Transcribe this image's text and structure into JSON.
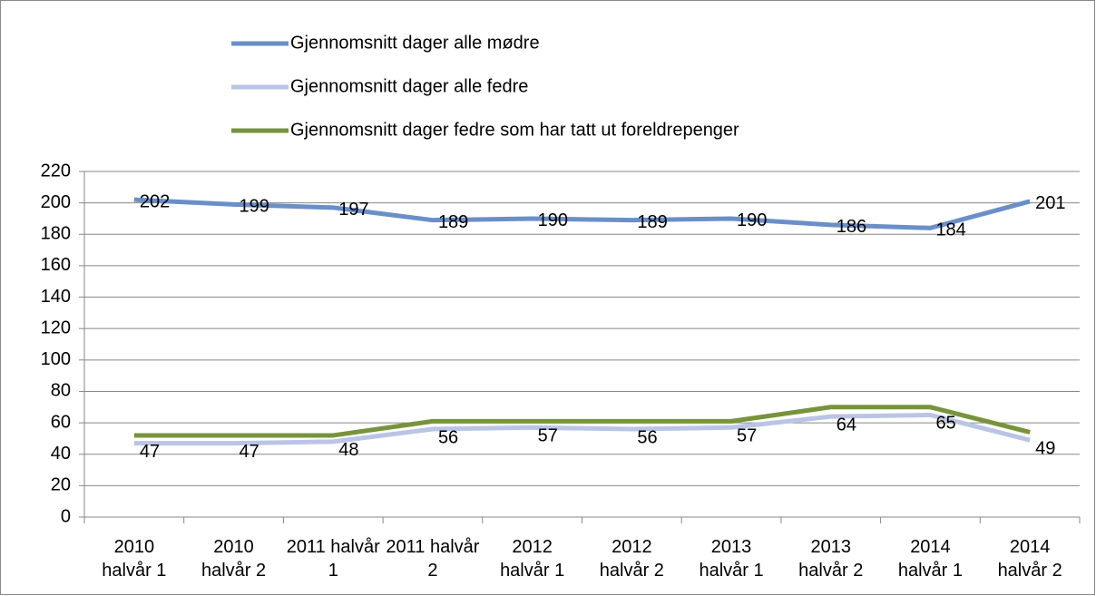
{
  "chart_data": {
    "type": "line",
    "categories": [
      "2010 halvår 1",
      "2010 halvår 2",
      "2011 halvår 1",
      "2011 halvår 2",
      "2012 halvår 1",
      "2012 halvår 2",
      "2013 halvår 1",
      "2013 halvår 2",
      "2014 halvår 1",
      "2014 halvår 2"
    ],
    "series": [
      {
        "name": "Gjennomsnitt dager alle mødre",
        "color": "#6a8fc8",
        "values": [
          202,
          199,
          197,
          189,
          190,
          189,
          190,
          186,
          184,
          201
        ]
      },
      {
        "name": "Gjennomsnitt dager alle fedre",
        "color": "#bac5e5",
        "values": [
          47,
          47,
          48,
          56,
          57,
          56,
          57,
          64,
          65,
          49
        ]
      },
      {
        "name": "Gjennomsnitt dager fedre som har tatt ut foreldrepenger",
        "color": "#77933c",
        "values": [
          52,
          52,
          52,
          61,
          61,
          61,
          61,
          70,
          70,
          54
        ]
      }
    ],
    "data_labels": [
      true,
      true,
      false
    ],
    "ylim": [
      0,
      220
    ],
    "yticks": [
      0,
      20,
      40,
      60,
      80,
      100,
      120,
      140,
      160,
      180,
      200,
      220
    ],
    "grid": true,
    "legend": "top"
  }
}
